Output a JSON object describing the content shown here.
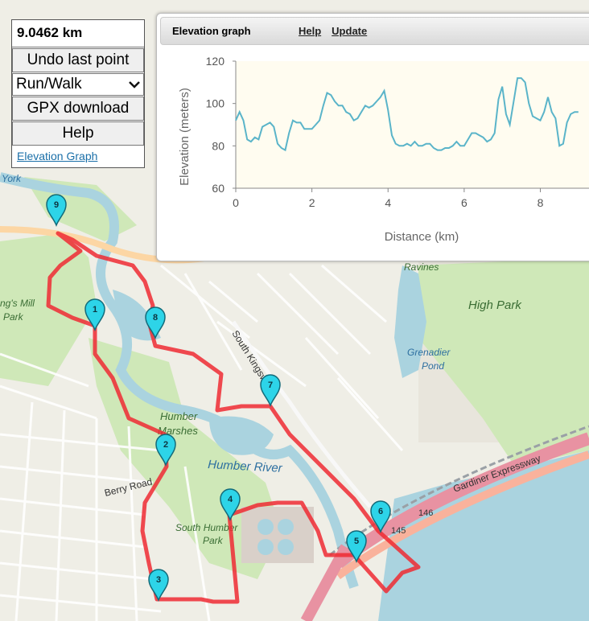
{
  "controls": {
    "distance": "9.0462 km",
    "undo_label": "Undo last point",
    "mode_value": "Run/Walk",
    "gpx_label": "GPX download",
    "help_label": "Help",
    "elevation_link": "Elevation Graph"
  },
  "graph": {
    "title": "Elevation graph",
    "help_link": "Help",
    "update_link": "Update"
  },
  "chart_data": {
    "type": "line",
    "xlabel": "Distance (km)",
    "ylabel": "Elevation (meters)",
    "xlim": [
      0,
      9.3
    ],
    "ylim": [
      60,
      120
    ],
    "xticks": [
      0,
      2,
      4,
      6,
      8
    ],
    "yticks": [
      60,
      80,
      100,
      120
    ],
    "line_color": "#5ab4c9",
    "background": "#fffcf0",
    "x": [
      0,
      0.1,
      0.2,
      0.3,
      0.4,
      0.5,
      0.6,
      0.7,
      0.8,
      0.9,
      1.0,
      1.1,
      1.2,
      1.3,
      1.4,
      1.5,
      1.6,
      1.7,
      1.8,
      1.9,
      2.0,
      2.1,
      2.2,
      2.3,
      2.4,
      2.5,
      2.6,
      2.7,
      2.8,
      2.9,
      3.0,
      3.1,
      3.2,
      3.3,
      3.4,
      3.5,
      3.6,
      3.7,
      3.8,
      3.9,
      4.0,
      4.1,
      4.2,
      4.3,
      4.4,
      4.5,
      4.6,
      4.7,
      4.8,
      4.9,
      5.0,
      5.1,
      5.2,
      5.3,
      5.4,
      5.5,
      5.6,
      5.7,
      5.8,
      5.9,
      6.0,
      6.1,
      6.2,
      6.3,
      6.4,
      6.5,
      6.6,
      6.7,
      6.8,
      6.9,
      7.0,
      7.1,
      7.2,
      7.3,
      7.4,
      7.5,
      7.6,
      7.7,
      7.8,
      7.9,
      8.0,
      8.1,
      8.2,
      8.3,
      8.4,
      8.5,
      8.6,
      8.7,
      8.8,
      8.9,
      9.0
    ],
    "y": [
      92,
      96,
      92,
      83,
      82,
      84,
      83,
      89,
      90,
      91,
      89,
      81,
      79,
      78,
      86,
      92,
      91,
      91,
      88,
      88,
      88,
      90,
      92,
      99,
      105,
      104,
      101,
      99,
      99,
      96,
      95,
      92,
      93,
      96,
      99,
      98,
      99,
      101,
      103,
      106,
      97,
      85,
      81,
      80,
      80,
      81,
      80,
      82,
      80,
      80,
      81,
      81,
      79,
      78,
      78,
      79,
      79,
      80,
      82,
      80,
      80,
      83,
      86,
      86,
      85,
      84,
      82,
      83,
      86,
      102,
      108,
      95,
      90,
      101,
      112,
      112,
      110,
      100,
      94,
      93,
      92,
      96,
      103,
      96,
      93,
      80,
      81,
      91,
      95,
      96,
      96
    ]
  },
  "map": {
    "labels": [
      "Humber Marshes",
      "Humber River",
      "Berry Road",
      "South Humber Park",
      "South Kingsway",
      "High Park",
      "Grenadier Pond",
      "Ravines",
      "Gardiner Expressway",
      "146",
      "145",
      "ng's Mill Park",
      "York"
    ],
    "markers": [
      "1",
      "2",
      "3",
      "4",
      "5",
      "6",
      "7",
      "8",
      "9"
    ]
  }
}
